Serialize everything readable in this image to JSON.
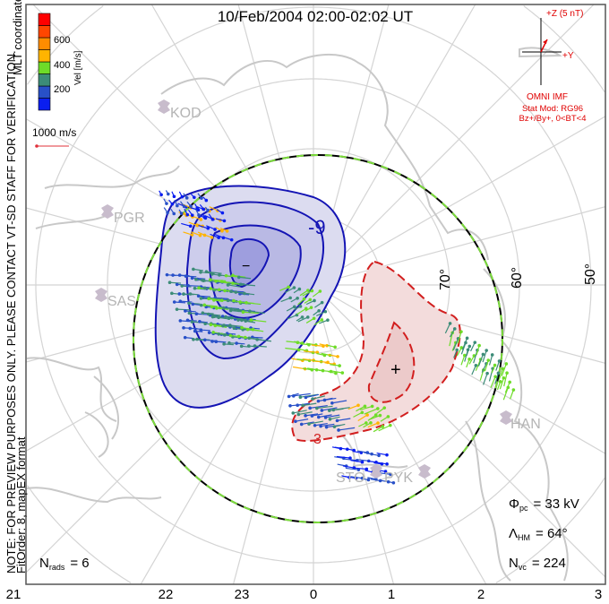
{
  "title": "10/Feb/2004 02:00-02:02 UT",
  "side_note_1": "NOTE: FOR PREVIEW PURPOSES ONLY. PLEASE CONTACT VT-SD STAFF FOR VERIFICATION.",
  "side_note_2": "FitOrder: 8, mapEX format",
  "coords_label": "MLT coordinates",
  "colorbar": {
    "title": "Vel [m/s]",
    "ticks": [
      "200",
      "400",
      "600"
    ],
    "colors": [
      "#0a1ef0",
      "#2850c8",
      "#3c8c78",
      "#6edc28",
      "#ffb400",
      "#ff8c00",
      "#ff4600",
      "#ff0000"
    ]
  },
  "scale_vector": {
    "label": "1000 m/s",
    "color": "#e0303a"
  },
  "imf": {
    "z_label": "+Z (5 nT)",
    "y_label": "+Y",
    "source": "OMNI IMF",
    "stat_mod": "Stat Mod: RG96",
    "condition": "Bz+/By+, 0<BT<4",
    "color": "#e00000"
  },
  "latitude_labels": [
    "70°",
    "60°",
    "50°"
  ],
  "mlt_labels": [
    "21",
    "22",
    "23",
    "0",
    "1",
    "2",
    "3"
  ],
  "stations": [
    "KOD",
    "PGR",
    "SAS",
    "HAN",
    "STO",
    "PYK"
  ],
  "contours": {
    "min_label": "-9",
    "max_label": "3",
    "min_marker": "−",
    "max_marker": "+",
    "neg_color": "#1414b4",
    "pos_color": "#d21e1e"
  },
  "stats": {
    "nrads_label": "N",
    "nrads_sub": "rads",
    "nrads_value": "= 6",
    "phi_label": "Φ",
    "phi_sub": "pc",
    "phi_value": "= 33 kV",
    "lambda_label": "Λ",
    "lambda_sub": "HM",
    "lambda_value": "= 64°",
    "nvc_label": "N",
    "nvc_sub": "vc",
    "nvc_value": "= 224"
  }
}
